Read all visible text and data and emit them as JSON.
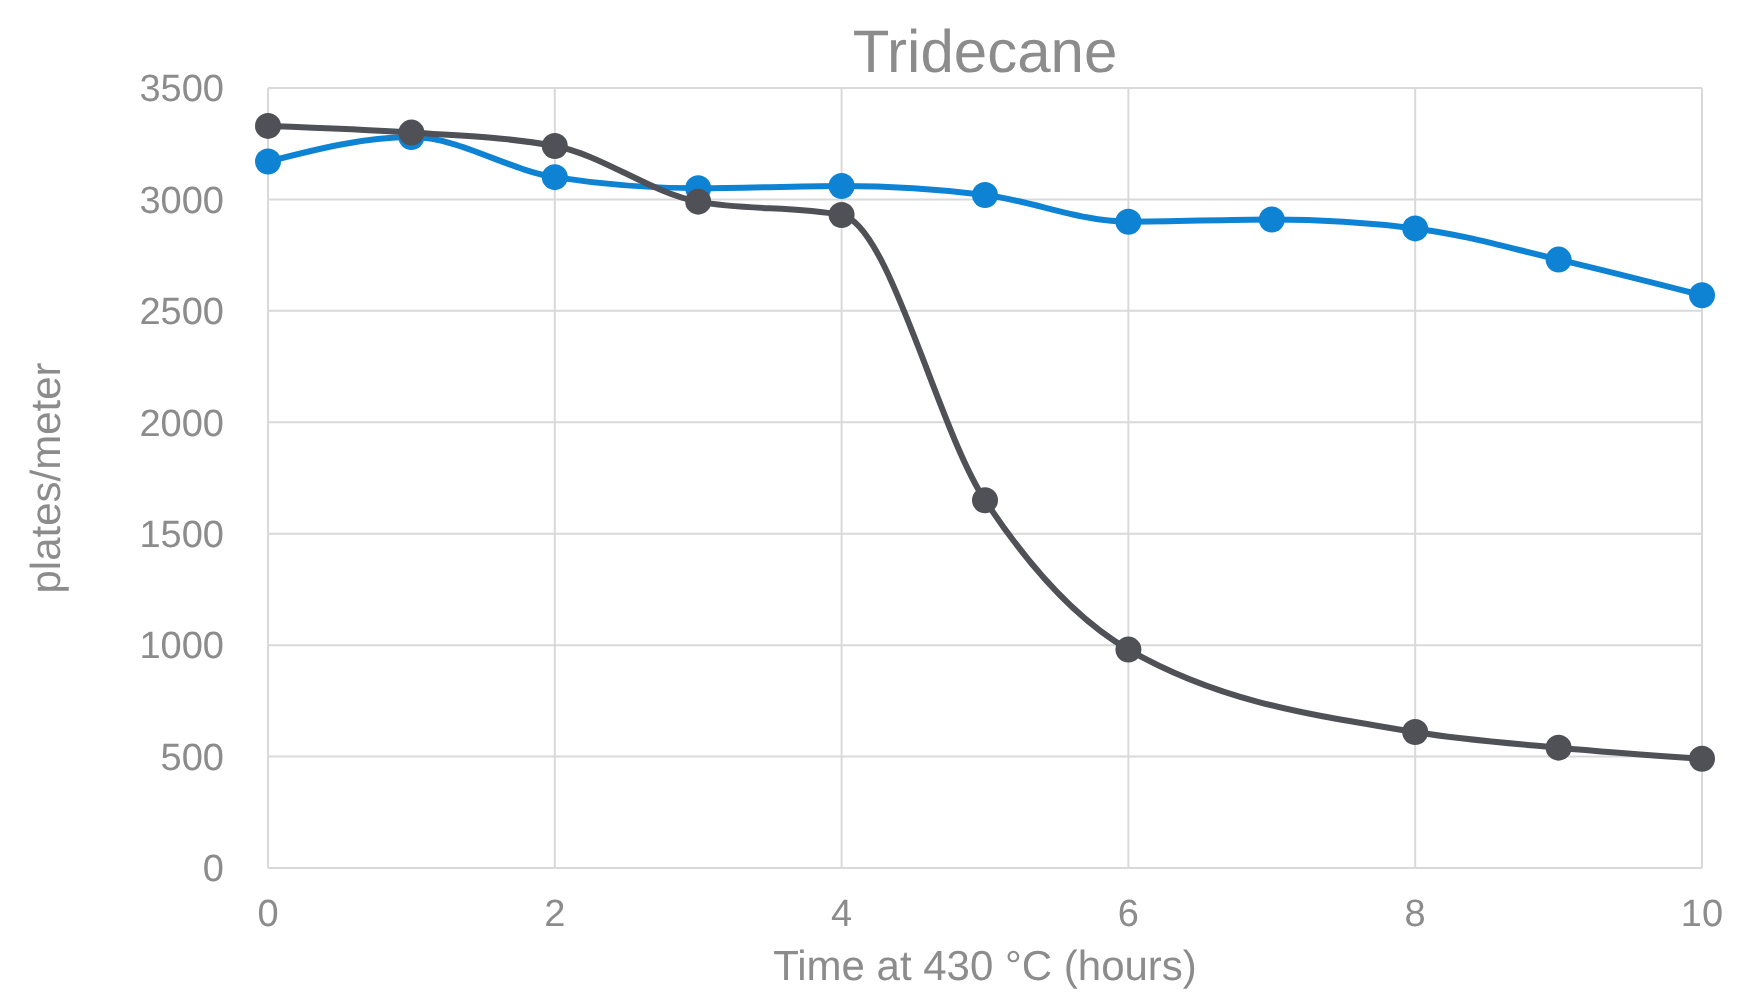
{
  "chart_data": {
    "type": "line",
    "title": "Tridecane",
    "xlabel": "Time at 430 °C (hours)",
    "ylabel": "plates/meter",
    "xlim": [
      0,
      10
    ],
    "xticks": [
      0,
      2,
      4,
      6,
      8,
      10
    ],
    "ylim": [
      0,
      3500
    ],
    "yticks": [
      0,
      500,
      1000,
      1500,
      2000,
      2500,
      3000,
      3500
    ],
    "grid": true,
    "marker": "circle",
    "line_style": "solid",
    "x": [
      0,
      1,
      2,
      3,
      4,
      5,
      6,
      7,
      8,
      9,
      10
    ],
    "series": [
      {
        "color": "#0e83d3",
        "values": [
          3170,
          3280,
          3100,
          3050,
          3060,
          3020,
          2900,
          2910,
          2870,
          2730,
          2570
        ]
      },
      {
        "color": "#4f5157",
        "x": [
          0,
          1,
          2,
          3,
          4,
          5,
          6,
          8,
          9,
          10
        ],
        "values": [
          3330,
          3300,
          3240,
          2990,
          2930,
          1650,
          980,
          610,
          540,
          490
        ]
      }
    ]
  }
}
